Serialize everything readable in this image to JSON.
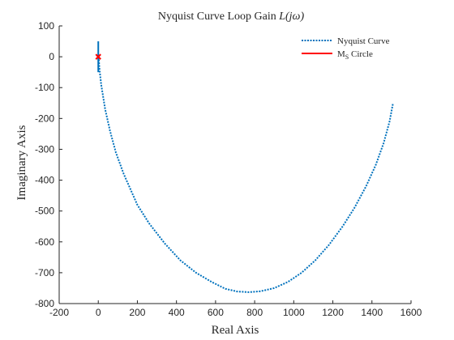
{
  "chart_data": {
    "type": "line",
    "title_text": "Nyquist Curve Loop Gain ",
    "title_math": "L(jω)",
    "xlabel": "Real Axis",
    "ylabel": "Imaginary Axis",
    "xlim": [
      -200,
      1600
    ],
    "ylim": [
      -800,
      100
    ],
    "xticks": [
      -200,
      0,
      200,
      400,
      600,
      800,
      1000,
      1200,
      1400,
      1600
    ],
    "yticks": [
      -800,
      -700,
      -600,
      -500,
      -400,
      -300,
      -200,
      -100,
      0,
      100
    ],
    "grid": false,
    "legend_position": "top-right",
    "series": [
      {
        "name": "Nyquist Curve",
        "style": "dotted",
        "color": "#0072bd",
        "x": [
          2,
          6,
          15,
          35,
          60,
          90,
          130,
          200,
          260,
          340,
          420,
          500,
          580,
          650,
          710,
          770,
          830,
          900,
          970,
          1040,
          1110,
          1180,
          1250,
          1310,
          1370,
          1420,
          1460,
          1490,
          1508
        ],
        "y": [
          0,
          -40,
          -90,
          -170,
          -240,
          -310,
          -380,
          -480,
          -540,
          -605,
          -660,
          -700,
          -730,
          -752,
          -761,
          -763,
          -760,
          -750,
          -730,
          -700,
          -660,
          -610,
          -550,
          -490,
          -420,
          -350,
          -280,
          -210,
          -150
        ]
      },
      {
        "name_main": "M",
        "name_sub": "S",
        "name_rest": " Circle",
        "style": "solid",
        "color": "#ff0000",
        "x": [
          0
        ],
        "y": [
          0
        ]
      }
    ],
    "near_origin_segment": {
      "color": "#0072bd",
      "x": [
        0,
        0
      ],
      "y": [
        50,
        -50
      ]
    }
  }
}
